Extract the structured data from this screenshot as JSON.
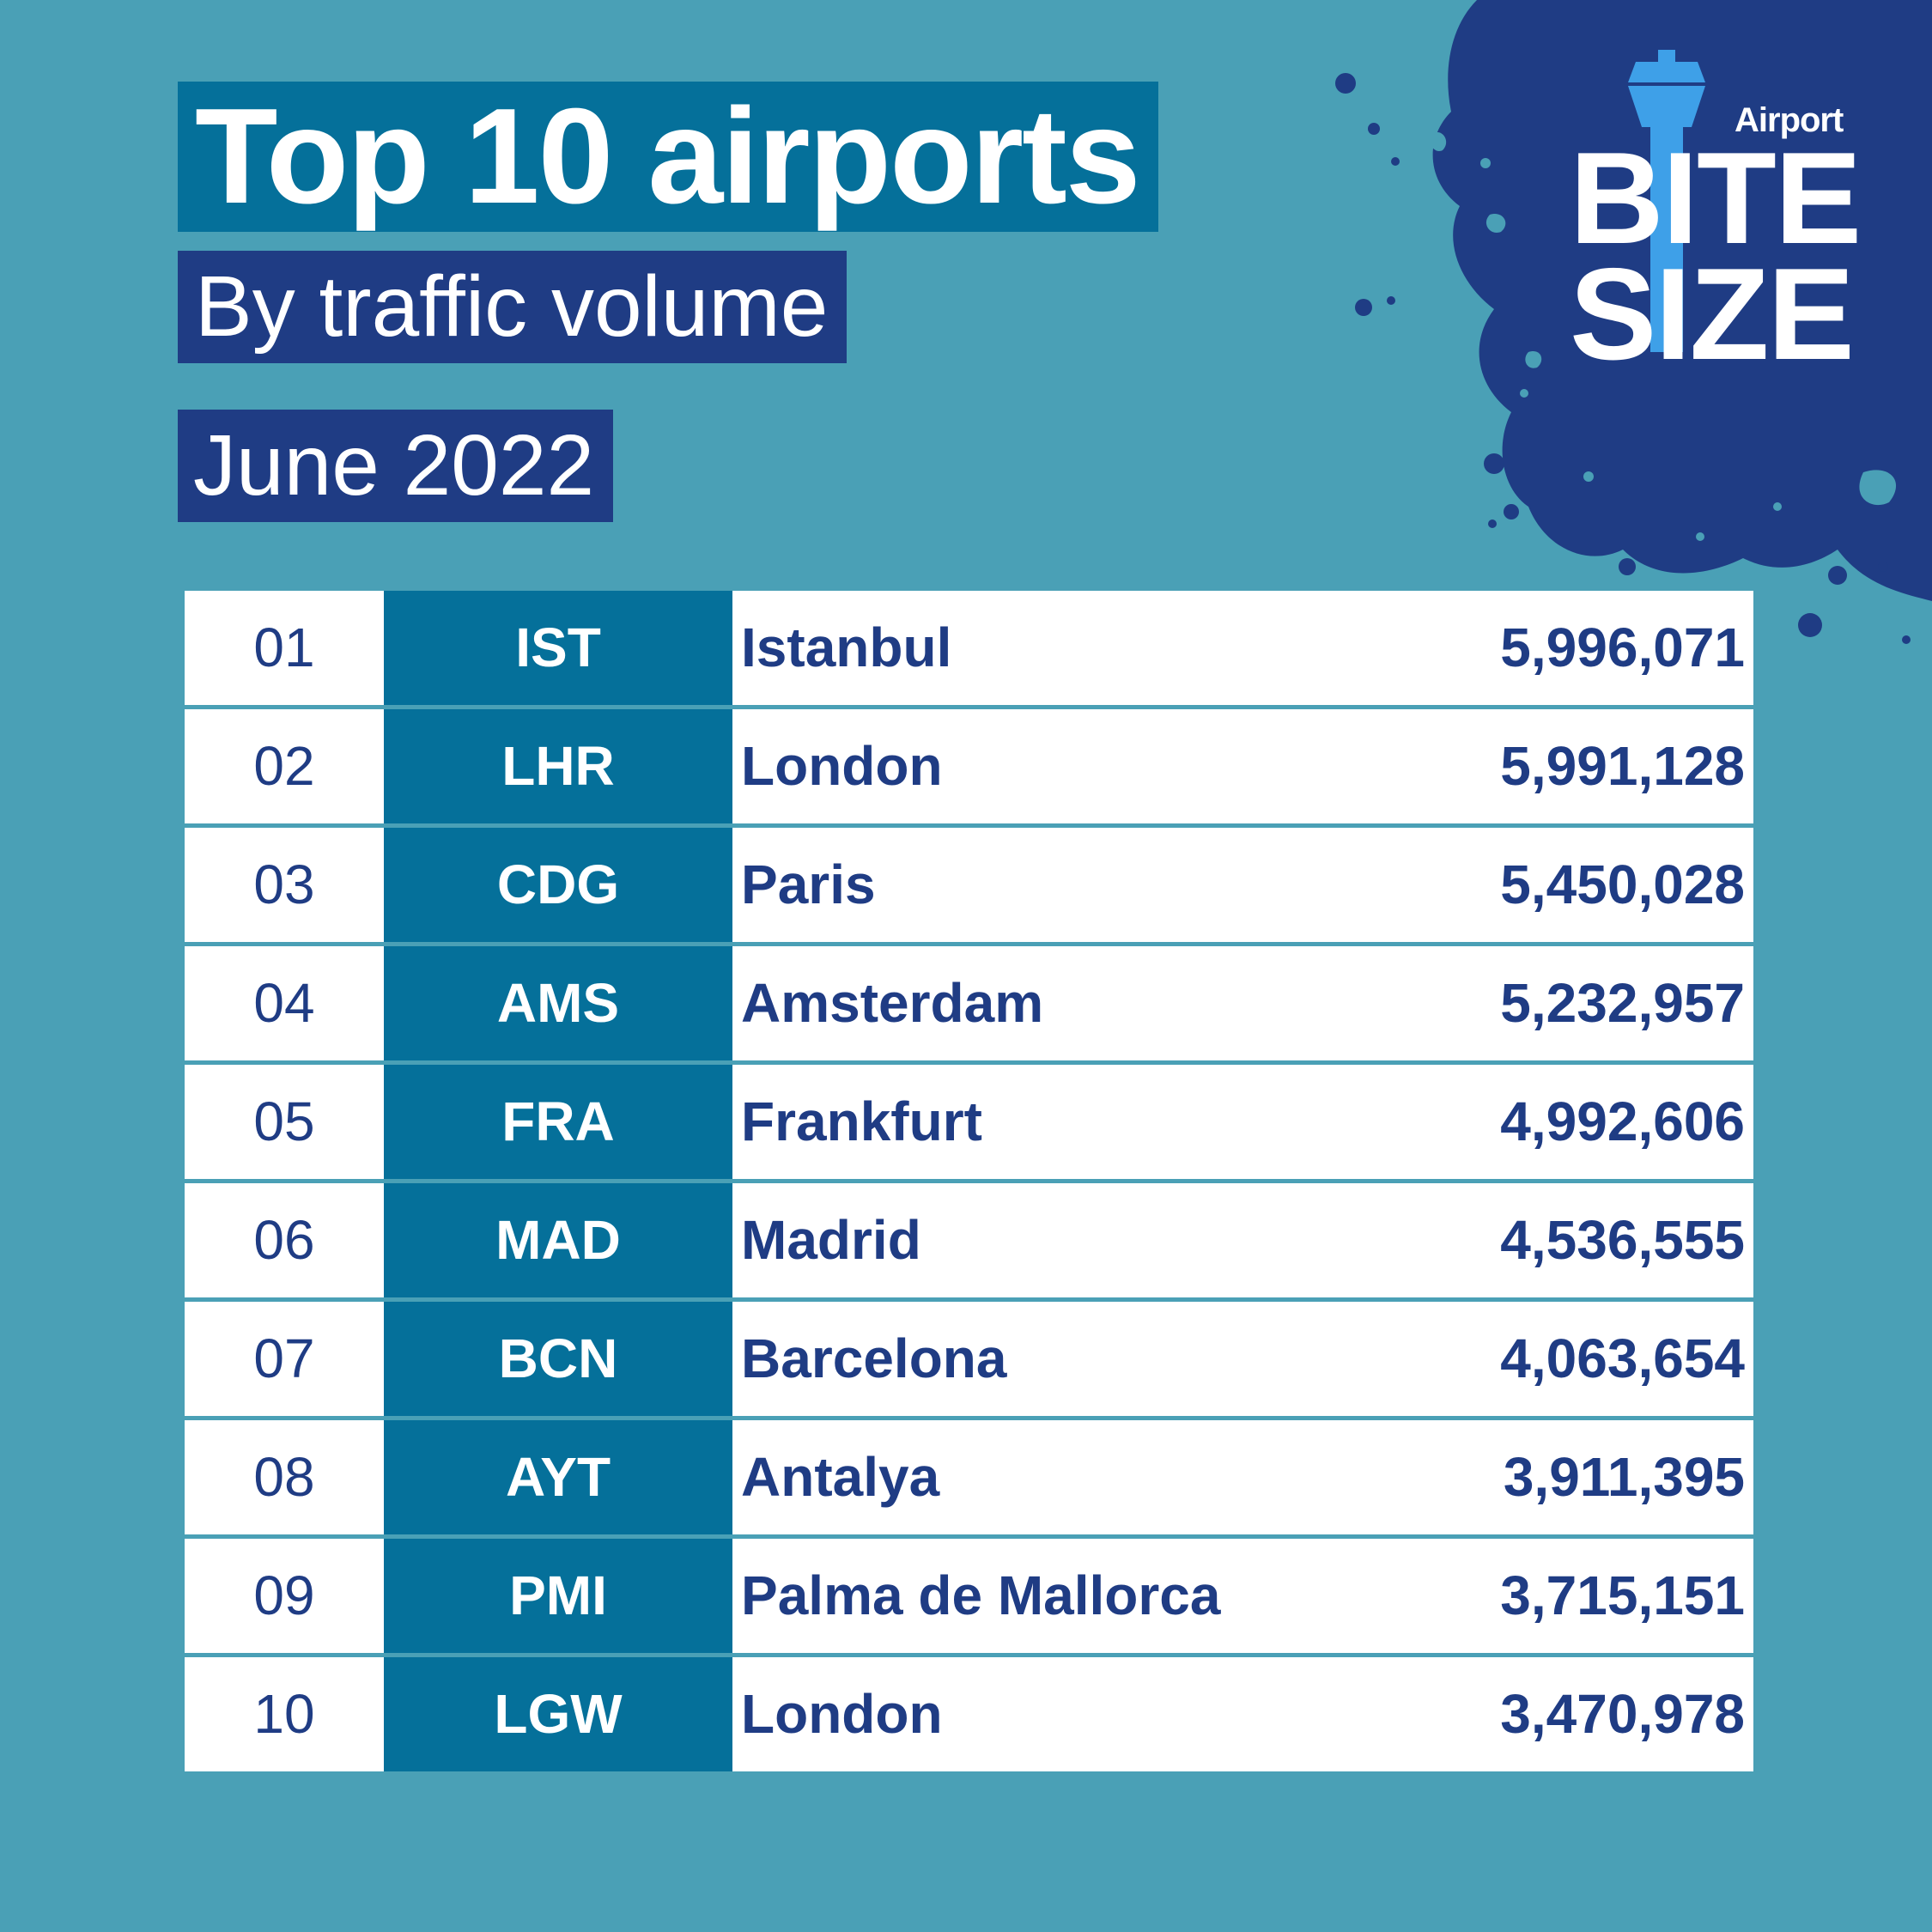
{
  "header": {
    "title": "Top 10 airports",
    "subtitle": "By traffic volume",
    "period": "June 2022"
  },
  "logo": {
    "top": "Airport",
    "line1": "BITE",
    "line2": "SIZE"
  },
  "colors": {
    "background": "#4aa0b6",
    "navy": "#1f3c84",
    "teal": "#05709a",
    "accent_blue": "#3ea0e8"
  },
  "table": {
    "rows": [
      {
        "rank": "01",
        "code": "IST",
        "city": "Istanbul",
        "passengers": "5,996,071"
      },
      {
        "rank": "02",
        "code": "LHR",
        "city": "London",
        "passengers": "5,991,128"
      },
      {
        "rank": "03",
        "code": "CDG",
        "city": "Paris",
        "passengers": "5,450,028"
      },
      {
        "rank": "04",
        "code": "AMS",
        "city": "Amsterdam",
        "passengers": "5,232,957"
      },
      {
        "rank": "05",
        "code": "FRA",
        "city": "Frankfurt",
        "passengers": "4,992,606"
      },
      {
        "rank": "06",
        "code": "MAD",
        "city": "Madrid",
        "passengers": "4,536,555"
      },
      {
        "rank": "07",
        "code": "BCN",
        "city": "Barcelona",
        "passengers": "4,063,654"
      },
      {
        "rank": "08",
        "code": "AYT",
        "city": "Antalya",
        "passengers": "3,911,395"
      },
      {
        "rank": "09",
        "code": "PMI",
        "city": "Palma de Mallorca",
        "passengers": "3,715,151"
      },
      {
        "rank": "10",
        "code": "LGW",
        "city": "London",
        "passengers": "3,470,978"
      }
    ]
  }
}
